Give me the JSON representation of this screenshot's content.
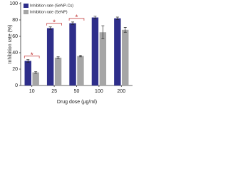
{
  "chart_data": {
    "type": "bar",
    "x_label": "Drug dose (μg/ml)",
    "y_label": "Inhibition rate (%)",
    "categories": [
      "10",
      "25",
      "50",
      "100",
      "200"
    ],
    "series": [
      {
        "name": "Inhibition rate (SeNP-Cs)",
        "color": "#2e2e8a",
        "values": [
          30,
          70,
          76,
          83,
          82
        ],
        "errors": [
          1.5,
          1.5,
          1.5,
          1.5,
          1.5
        ]
      },
      {
        "name": "Inhibition rate (SeNP)",
        "color": "#a6a6a6",
        "values": [
          16,
          34,
          36,
          65,
          68
        ],
        "errors": [
          1,
          1,
          1,
          8,
          3
        ]
      }
    ],
    "ylim": [
      0,
      100
    ],
    "yticks": [
      0,
      20,
      40,
      60,
      80,
      100
    ],
    "legend": "upper left",
    "annotations": [
      "*",
      "*",
      "*"
    ]
  }
}
